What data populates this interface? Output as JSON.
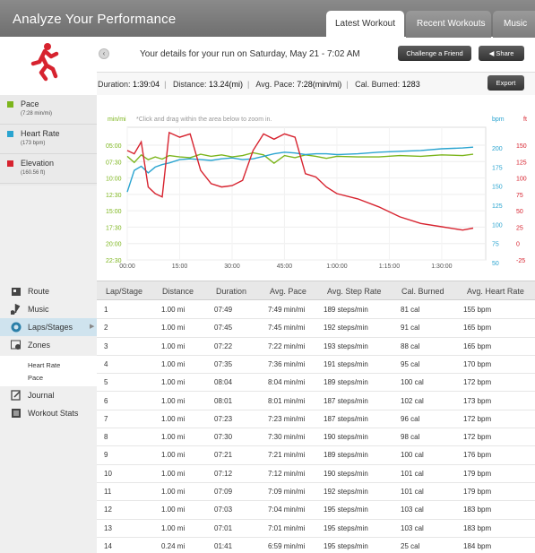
{
  "header": {
    "title": "Analyze Your Performance",
    "tabs": [
      {
        "label": "Latest Workout",
        "active": true
      },
      {
        "label": "Recent Workouts",
        "active": false
      },
      {
        "label": "Music",
        "active": false
      }
    ]
  },
  "summary": {
    "run_title": "Your details for your run on Saturday, May 21 - 7:02 AM",
    "challenge_label": "Challenge a Friend",
    "share_label": "Share",
    "export_label": "Export",
    "duration_label": "Duration:",
    "duration_value": "1:39:04",
    "distance_label": "Distance:",
    "distance_value": "13.24(mi)",
    "pace_label": "Avg. Pace:",
    "pace_value": "7:28(min/mi)",
    "cal_label": "Cal. Burned:",
    "cal_value": "1283"
  },
  "legend": [
    {
      "label": "Pace",
      "sub": "(7:28 min/mi)",
      "color": "#7cb51c"
    },
    {
      "label": "Heart Rate",
      "sub": "(173 bpm)",
      "color": "#2aa4d0"
    },
    {
      "label": "Elevation",
      "sub": "(160.56 ft)",
      "color": "#d7232f"
    }
  ],
  "nav": {
    "items": [
      {
        "label": "Route",
        "icon": "route-icon"
      },
      {
        "label": "Music",
        "icon": "music-note-icon"
      },
      {
        "label": "Laps/Stages",
        "icon": "laps-icon",
        "active": true
      },
      {
        "label": "Zones",
        "icon": "zones-icon"
      },
      {
        "label": "Journal",
        "icon": "journal-icon"
      },
      {
        "label": "Workout Stats",
        "icon": "stats-icon"
      }
    ],
    "zone_subitems": [
      "Heart Rate",
      "Pace"
    ]
  },
  "chart_data": {
    "type": "line",
    "hint": "*Click and drag within the area below to zoom in.",
    "left_unit": "min/mi",
    "right_units": [
      "bpm",
      "ft"
    ],
    "x_ticks": [
      "00:00",
      "15:00",
      "30:00",
      "45:00",
      "1:00:00",
      "1:15:00",
      "1:30:00"
    ],
    "pace_ticks": [
      "05:00",
      "07:30",
      "10:00",
      "12:30",
      "15:00",
      "17:30",
      "20:00",
      "22:30"
    ],
    "bpm_ticks": [
      "200",
      "175",
      "150",
      "125",
      "100",
      "75",
      "50"
    ],
    "ft_ticks": [
      "150",
      "125",
      "100",
      "75",
      "50",
      "25",
      "0",
      "-25"
    ],
    "x_minutes": [
      0,
      2,
      4,
      6,
      8,
      10,
      12,
      15,
      18,
      21,
      24,
      27,
      30,
      33,
      36,
      39,
      42,
      45,
      48,
      51,
      54,
      57,
      60,
      66,
      72,
      78,
      84,
      90,
      96,
      99
    ],
    "series": [
      {
        "name": "Pace",
        "color": "#7cb51c",
        "unit": "min/mi",
        "y_range": [
          22.5,
          3.3
        ],
        "values": [
          7.5,
          8.4,
          7.3,
          8.0,
          7.6,
          7.9,
          7.4,
          7.6,
          7.7,
          7.2,
          7.5,
          7.3,
          7.6,
          7.4,
          7.0,
          7.3,
          8.5,
          7.4,
          7.7,
          7.3,
          7.5,
          7.8,
          7.5,
          7.6,
          7.6,
          7.4,
          7.5,
          7.3,
          7.4,
          7.2
        ]
      },
      {
        "name": "Heart Rate",
        "color": "#2aa4d0",
        "unit": "bpm",
        "y_range": [
          50,
          210
        ],
        "values": [
          132,
          158,
          163,
          155,
          162,
          165,
          167,
          171,
          172,
          171,
          170,
          172,
          173,
          171,
          172,
          175,
          178,
          180,
          179,
          177,
          178,
          178,
          177,
          178,
          180,
          181,
          182,
          184,
          185,
          186
        ]
      },
      {
        "name": "Elevation",
        "color": "#d7232f",
        "unit": "ft",
        "y_range": [
          -40,
          160
        ],
        "values": [
          125,
          120,
          138,
          70,
          60,
          55,
          152,
          145,
          150,
          95,
          75,
          70,
          72,
          80,
          125,
          150,
          142,
          150,
          145,
          90,
          85,
          70,
          60,
          52,
          40,
          25,
          15,
          10,
          5,
          8
        ]
      }
    ]
  },
  "table": {
    "headers": [
      "Lap/Stage",
      "Distance",
      "Duration",
      "Avg. Pace",
      "Avg. Step Rate",
      "Cal. Burned",
      "Avg. Heart Rate"
    ],
    "rows": [
      [
        "1",
        "1.00 mi",
        "07:49",
        "7:49 min/mi",
        "189 steps/min",
        "81 cal",
        "155 bpm"
      ],
      [
        "2",
        "1.00 mi",
        "07:45",
        "7:45 min/mi",
        "192 steps/min",
        "91 cal",
        "165 bpm"
      ],
      [
        "3",
        "1.00 mi",
        "07:22",
        "7:22 min/mi",
        "193 steps/min",
        "88 cal",
        "165 bpm"
      ],
      [
        "4",
        "1.00 mi",
        "07:35",
        "7:36 min/mi",
        "191 steps/min",
        "95 cal",
        "170 bpm"
      ],
      [
        "5",
        "1.00 mi",
        "08:04",
        "8:04 min/mi",
        "189 steps/min",
        "100 cal",
        "172 bpm"
      ],
      [
        "6",
        "1.00 mi",
        "08:01",
        "8:01 min/mi",
        "187 steps/min",
        "102 cal",
        "173 bpm"
      ],
      [
        "7",
        "1.00 mi",
        "07:23",
        "7:23 min/mi",
        "187 steps/min",
        "96 cal",
        "172 bpm"
      ],
      [
        "8",
        "1.00 mi",
        "07:30",
        "7:30 min/mi",
        "190 steps/min",
        "98 cal",
        "172 bpm"
      ],
      [
        "9",
        "1.00 mi",
        "07:21",
        "7:21 min/mi",
        "189 steps/min",
        "100 cal",
        "176 bpm"
      ],
      [
        "10",
        "1.00 mi",
        "07:12",
        "7:12 min/mi",
        "190 steps/min",
        "101 cal",
        "179 bpm"
      ],
      [
        "11",
        "1.00 mi",
        "07:09",
        "7:09 min/mi",
        "192 steps/min",
        "101 cal",
        "179 bpm"
      ],
      [
        "12",
        "1.00 mi",
        "07:03",
        "7:04 min/mi",
        "195 steps/min",
        "103 cal",
        "183 bpm"
      ],
      [
        "13",
        "1.00 mi",
        "07:01",
        "7:01 min/mi",
        "195 steps/min",
        "103 cal",
        "183 bpm"
      ],
      [
        "14",
        "0.24 mi",
        "01:41",
        "6:59 min/mi",
        "195 steps/min",
        "25 cal",
        "184 bpm"
      ]
    ]
  }
}
